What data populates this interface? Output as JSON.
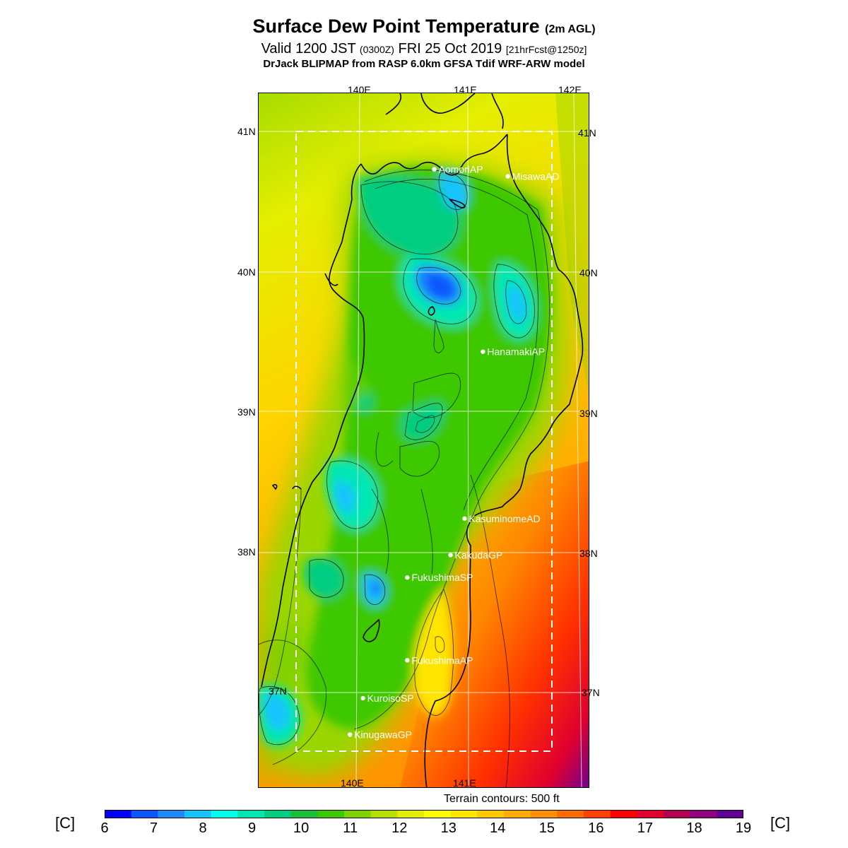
{
  "title": {
    "main": "Surface Dew Point Temperature",
    "suffix": "(2m AGL)"
  },
  "subtitle": {
    "valid": "Valid 1200 JST",
    "zulu": "(0300Z)",
    "date": "FRI 25 Oct 2019",
    "forecast": "[21hrFcst@1250z]"
  },
  "model_line": "DrJack BLIPMAP from RASP 6.0km GFSA Tdif WRF-ARW model",
  "map": {
    "lon_labels_top": [
      "140E",
      "141E",
      "142E"
    ],
    "lon_labels_bottom": [
      "140E",
      "141E"
    ],
    "lat_labels": [
      "41N",
      "40N",
      "39N",
      "38N",
      "37N"
    ],
    "colors": {
      "coast": "#000000",
      "grid": "#ffffff",
      "station": "#ffffff",
      "domain_box": "#ffffff"
    }
  },
  "stations": [
    {
      "name": "AomoriAP",
      "lon": 140.69,
      "lat": 40.73
    },
    {
      "name": "MisawaAD",
      "lon": 141.37,
      "lat": 40.68
    },
    {
      "name": "HanamakiAP",
      "lon": 141.14,
      "lat": 39.43
    },
    {
      "name": "KasuminomeAD",
      "lon": 140.97,
      "lat": 38.24
    },
    {
      "name": "KakudaGP",
      "lon": 140.84,
      "lat": 37.98
    },
    {
      "name": "FukushimaSP",
      "lon": 140.44,
      "lat": 37.82
    },
    {
      "name": "FukushimaAP",
      "lon": 140.44,
      "lat": 37.23
    },
    {
      "name": "KuroisoSP",
      "lon": 140.03,
      "lat": 36.96
    },
    {
      "name": "KinugawaGP",
      "lon": 139.91,
      "lat": 36.7
    }
  ],
  "terrain_note": "Terrain contours: 500 ft",
  "colorbar": {
    "unit": "[C]",
    "ticks": [
      "6",
      "7",
      "8",
      "9",
      "10",
      "11",
      "12",
      "13",
      "14",
      "15",
      "16",
      "17",
      "18",
      "19"
    ],
    "colors": [
      "#0000ff",
      "#0f55ff",
      "#1f8aff",
      "#17c3ff",
      "#00ffee",
      "#00e7b3",
      "#00cd80",
      "#1abf3c",
      "#3cc800",
      "#7dd200",
      "#b6e000",
      "#e4ee00",
      "#ffff00",
      "#ffe400",
      "#ffc800",
      "#ffad00",
      "#ff8f00",
      "#ff6a00",
      "#ff4000",
      "#ff0000",
      "#e0002e",
      "#b80050",
      "#900080",
      "#600099"
    ]
  }
}
